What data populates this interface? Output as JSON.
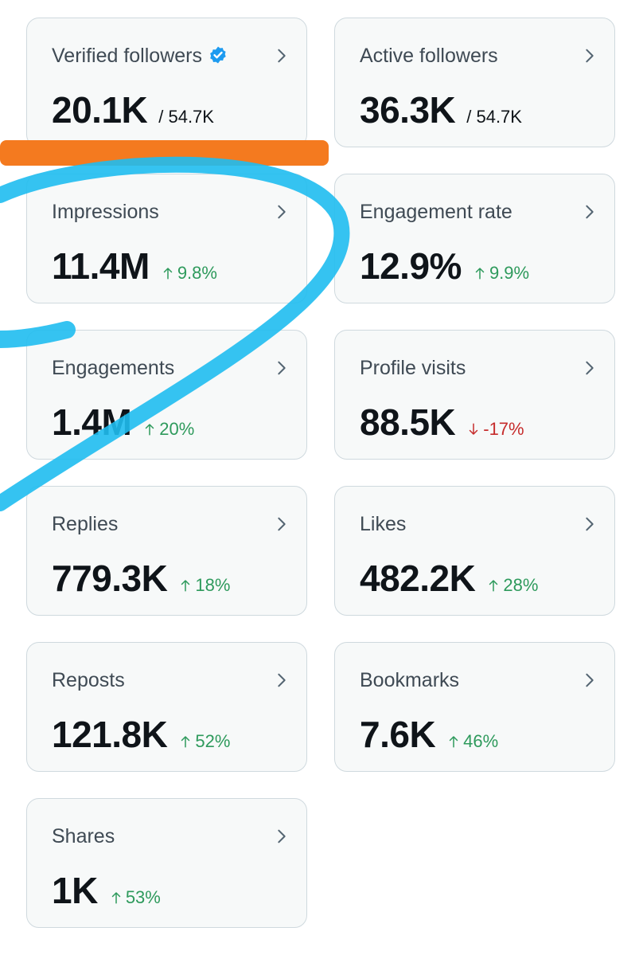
{
  "cards": [
    {
      "label": "Verified followers",
      "value": "20.1K",
      "sub": "/ 54.7K",
      "verified": true
    },
    {
      "label": "Active followers",
      "value": "36.3K",
      "sub": "/ 54.7K"
    },
    {
      "label": "Impressions",
      "value": "11.4M",
      "change": "9.8%",
      "trend": "up"
    },
    {
      "label": "Engagement rate",
      "value": "12.9%",
      "change": "9.9%",
      "trend": "up"
    },
    {
      "label": "Engagements",
      "value": "1.4M",
      "change": "20%",
      "trend": "up"
    },
    {
      "label": "Profile visits",
      "value": "88.5K",
      "change": "-17%",
      "trend": "down"
    },
    {
      "label": "Replies",
      "value": "779.3K",
      "change": "18%",
      "trend": "up"
    },
    {
      "label": "Likes",
      "value": "482.2K",
      "change": "28%",
      "trend": "up"
    },
    {
      "label": "Reposts",
      "value": "121.8K",
      "change": "52%",
      "trend": "up"
    },
    {
      "label": "Bookmarks",
      "value": "7.6K",
      "change": "46%",
      "trend": "up"
    },
    {
      "label": "Shares",
      "value": "1K",
      "change": "53%",
      "trend": "up"
    }
  ]
}
